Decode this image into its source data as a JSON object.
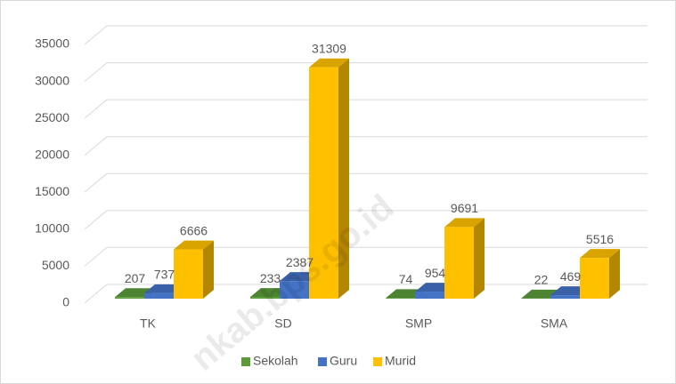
{
  "chart_data": {
    "type": "bar3d",
    "categories": [
      "TK",
      "SD",
      "SMP",
      "SMA"
    ],
    "series": [
      {
        "name": "Sekolah",
        "color": "#5b9b3a",
        "values": [
          207,
          233,
          74,
          22
        ]
      },
      {
        "name": "Guru",
        "color": "#4472c4",
        "values": [
          737,
          2387,
          954,
          469
        ]
      },
      {
        "name": "Murid",
        "color": "#ffc000",
        "values": [
          6666,
          31309,
          9691,
          5516
        ]
      }
    ],
    "ylim": [
      0,
      35000
    ],
    "yticks": [
      0,
      5000,
      10000,
      15000,
      20000,
      25000,
      30000,
      35000
    ],
    "grid": true,
    "legend": "bottom",
    "watermark": "nkab.bps.go.id"
  }
}
